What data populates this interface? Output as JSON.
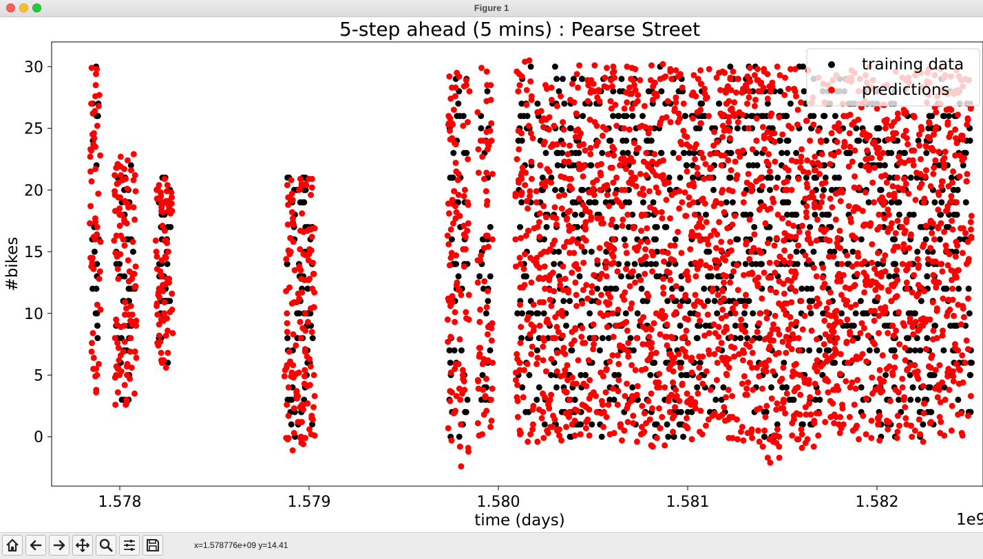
{
  "window": {
    "title": "Figure 1"
  },
  "toolbar": {
    "buttons": [
      {
        "name": "home-button",
        "icon": "home-icon"
      },
      {
        "name": "back-button",
        "icon": "arrow-left-icon"
      },
      {
        "name": "forward-button",
        "icon": "arrow-right-icon"
      },
      {
        "name": "pan-button",
        "icon": "move-icon"
      },
      {
        "name": "zoom-button",
        "icon": "magnifier-icon"
      },
      {
        "name": "configure-subplots-button",
        "icon": "sliders-icon"
      },
      {
        "name": "save-button",
        "icon": "floppy-disk-icon"
      }
    ],
    "coords": "x=1.578776e+09 y=14.41"
  },
  "chart_data": {
    "type": "scatter",
    "title": "5-step ahead (5 mins) : Pearse Street",
    "xlabel": "time (days)",
    "ylabel": "#bikes",
    "x_offset_label": "1e9",
    "xlim": [
      1.57764,
      1.58256
    ],
    "ylim": [
      -4.0,
      32.0
    ],
    "xticks": [
      1.578,
      1.579,
      1.58,
      1.581,
      1.582
    ],
    "xtick_labels": [
      "1.578",
      "1.579",
      "1.580",
      "1.581",
      "1.582"
    ],
    "yticks": [
      0,
      5,
      10,
      15,
      20,
      25,
      30
    ],
    "ytick_labels": [
      "0",
      "5",
      "10",
      "15",
      "20",
      "25",
      "30"
    ],
    "legend": {
      "position": "top-right",
      "entries": [
        "training data",
        "predictions"
      ]
    },
    "colors": {
      "training": "#000000",
      "predictions": "#ff0000"
    },
    "series": [
      {
        "name": "training data",
        "color": "#000000",
        "clusters": [
          [
            1.57785,
            1.57789,
            4,
            30
          ],
          [
            1.57798,
            1.57808,
            3,
            22
          ],
          [
            1.5782,
            1.57827,
            6,
            21
          ],
          [
            1.57888,
            1.57902,
            0,
            21
          ],
          [
            1.57974,
            1.57984,
            -1,
            30
          ],
          [
            1.5799,
            1.57996,
            3,
            30
          ],
          [
            1.5801,
            1.58018,
            1,
            30
          ],
          [
            1.5802,
            1.5804,
            0,
            30
          ],
          [
            1.5804,
            1.5806,
            0,
            30
          ],
          [
            1.5806,
            1.5808,
            1,
            30
          ],
          [
            1.5808,
            1.581,
            0,
            30
          ],
          [
            1.581,
            1.5812,
            2,
            30
          ],
          [
            1.5812,
            1.58135,
            8,
            30
          ],
          [
            1.58135,
            1.5815,
            -1,
            30
          ],
          [
            1.5815,
            1.5817,
            0,
            30
          ],
          [
            1.5817,
            1.5819,
            5,
            29
          ],
          [
            1.5819,
            1.5821,
            0,
            28
          ],
          [
            1.5821,
            1.5823,
            0,
            27
          ],
          [
            1.5823,
            1.5825,
            2,
            29
          ]
        ]
      },
      {
        "name": "predictions",
        "color": "#ff0000",
        "clusters": [
          [
            1.57784,
            1.5779,
            3.5,
            30
          ],
          [
            1.57797,
            1.57809,
            2.3,
            23
          ],
          [
            1.57819,
            1.57828,
            5.5,
            21
          ],
          [
            1.57887,
            1.57903,
            -1.2,
            21
          ],
          [
            1.57973,
            1.57985,
            -2.4,
            30.1
          ],
          [
            1.57989,
            1.57997,
            0,
            30
          ],
          [
            1.58009,
            1.58019,
            -0.8,
            30.5
          ],
          [
            1.5802,
            1.5804,
            -0.5,
            29
          ],
          [
            1.5804,
            1.5806,
            0,
            30.2
          ],
          [
            1.5806,
            1.5808,
            -0.5,
            30
          ],
          [
            1.5808,
            1.581,
            -0.8,
            30.2
          ],
          [
            1.581,
            1.5812,
            -0.3,
            30
          ],
          [
            1.5812,
            1.58135,
            -0.5,
            30
          ],
          [
            1.58135,
            1.5815,
            -2.3,
            30.3
          ],
          [
            1.5815,
            1.5817,
            -1.1,
            30.1
          ],
          [
            1.5817,
            1.5819,
            0,
            30
          ],
          [
            1.5819,
            1.5821,
            -0.7,
            30
          ],
          [
            1.5821,
            1.5823,
            -0.5,
            30
          ],
          [
            1.5823,
            1.5825,
            0,
            29.8
          ]
        ]
      }
    ]
  }
}
